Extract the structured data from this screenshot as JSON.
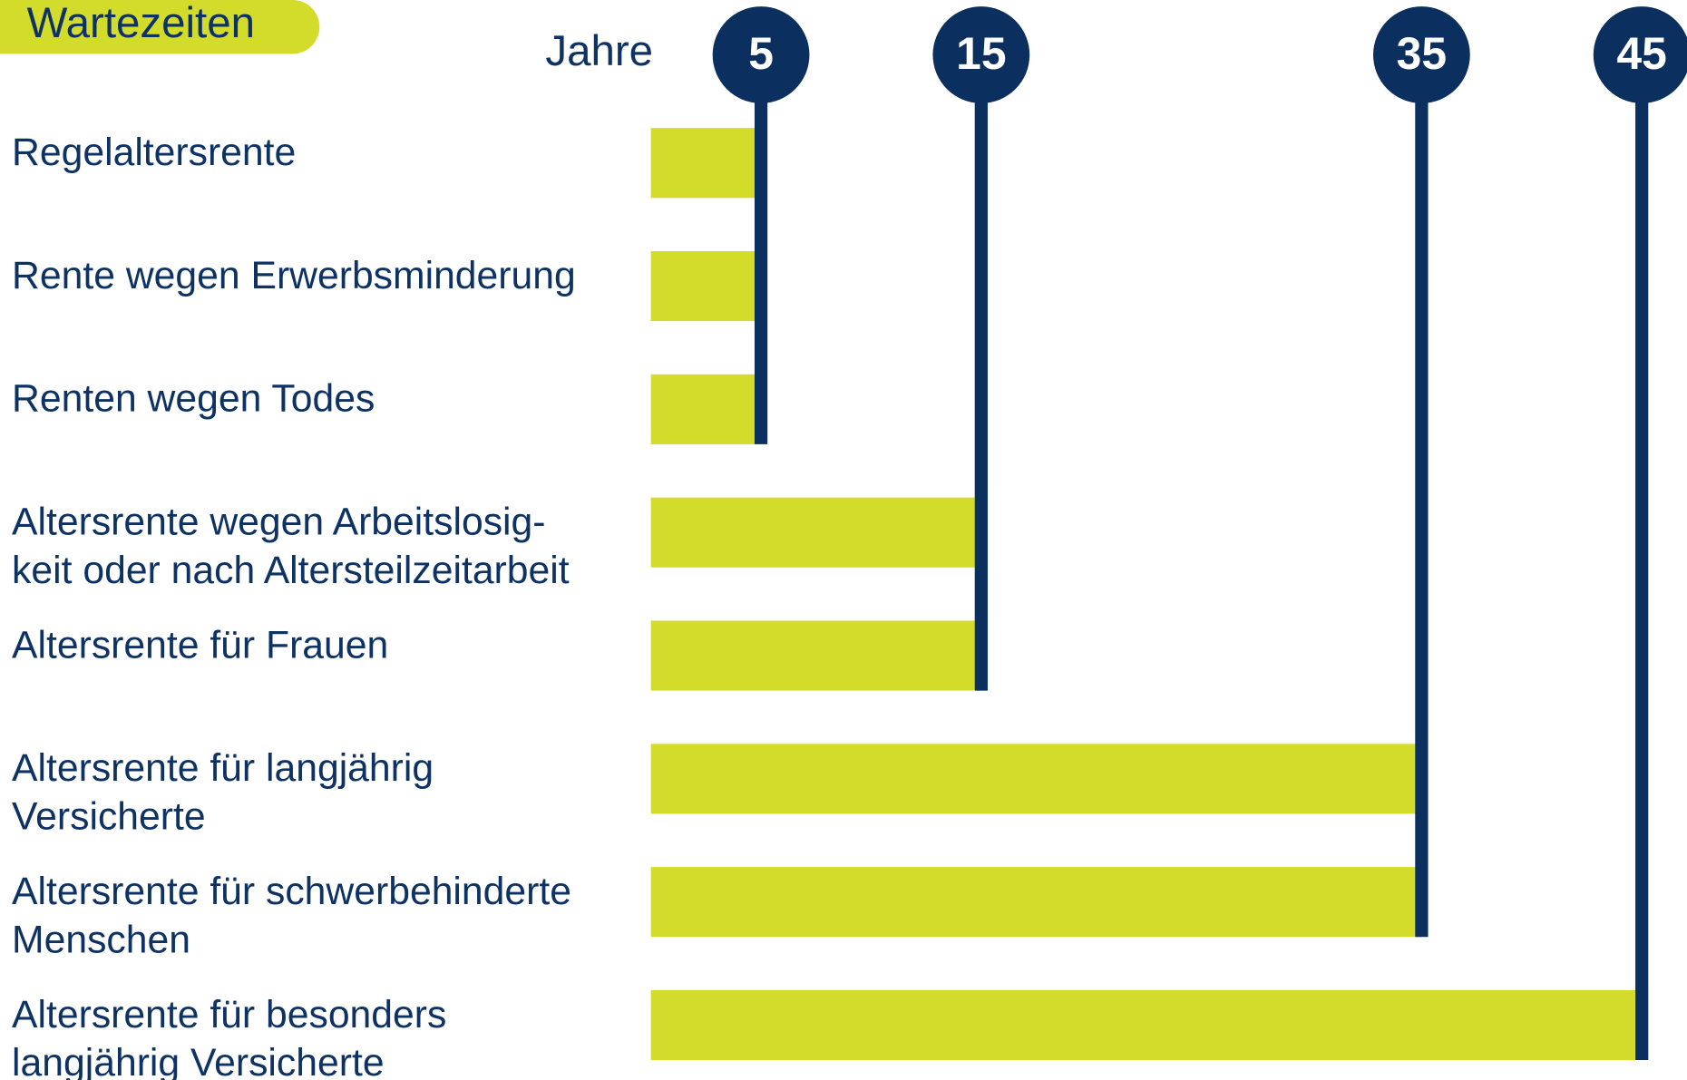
{
  "chart_data": {
    "type": "bar",
    "title": "Wartezeiten",
    "x_label": "Jahre",
    "categories": [
      [
        "Regelaltersrente"
      ],
      [
        "Rente wegen Erwerbsminderung"
      ],
      [
        "Renten wegen Todes"
      ],
      [
        "Altersrente wegen Arbeitslosig-",
        "keit oder nach Altersteilzeitarbeit"
      ],
      [
        "Altersrente für Frauen"
      ],
      [
        "Altersrente für langjährig",
        "Versicherte"
      ],
      [
        "Altersrente für schwerbehinderte",
        "Menschen"
      ],
      [
        "Altersrente für besonders",
        "langjährig Versicherte"
      ]
    ],
    "values": [
      5,
      5,
      5,
      15,
      15,
      35,
      35,
      45
    ],
    "color": "#d3dc2b",
    "marker_color": "#0b2f5e",
    "xlim": [
      0,
      45
    ],
    "xticks": [
      5,
      15,
      35,
      45
    ]
  }
}
